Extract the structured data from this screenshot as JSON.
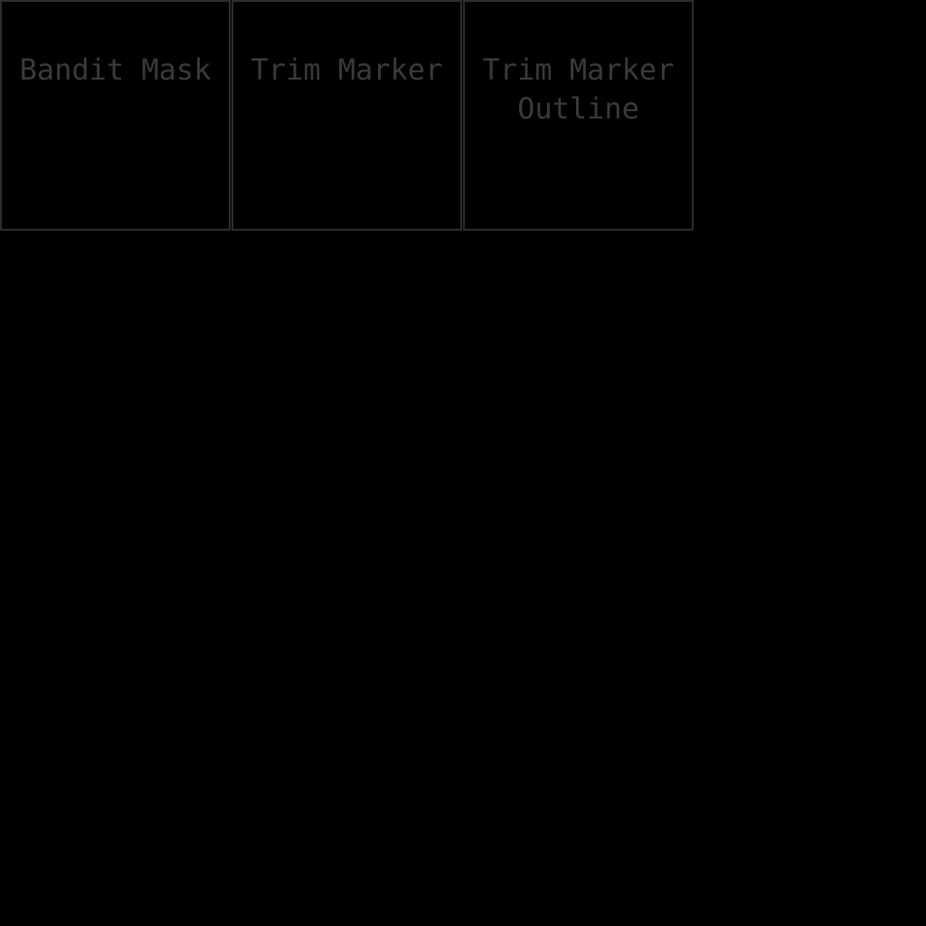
{
  "canvas": {
    "background_color": "#000000",
    "border_color": "#2e2e2e",
    "label_color": "#3a3a3a"
  },
  "cells": [
    {
      "label": "Bandit Mask"
    },
    {
      "label": "Trim Marker"
    },
    {
      "label": "Trim Marker Outline"
    }
  ]
}
